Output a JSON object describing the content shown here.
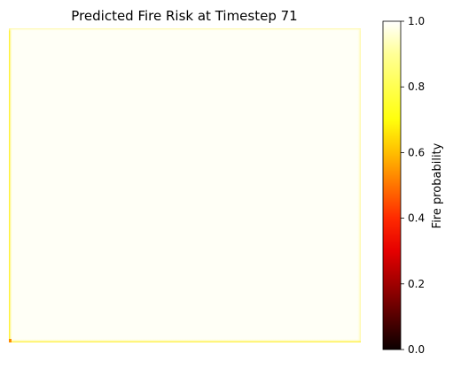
{
  "chart_data": {
    "type": "heatmap",
    "title": "Predicted Fire Risk at Timestep 71",
    "xlabel": "",
    "ylabel": "",
    "axes_visible": false,
    "grid": false,
    "colormap": "hot",
    "interior_value": 0.99,
    "edge_value": 0.85,
    "corner_value": 0.55,
    "colorbar": {
      "label": "Fire probability",
      "range": [
        0.0,
        1.0
      ],
      "ticks": [
        0.0,
        0.2,
        0.4,
        0.6,
        0.8,
        1.0
      ],
      "tick_labels": [
        "0.0",
        "0.2",
        "0.4",
        "0.6",
        "0.8",
        "1.0"
      ],
      "position": "right"
    }
  }
}
